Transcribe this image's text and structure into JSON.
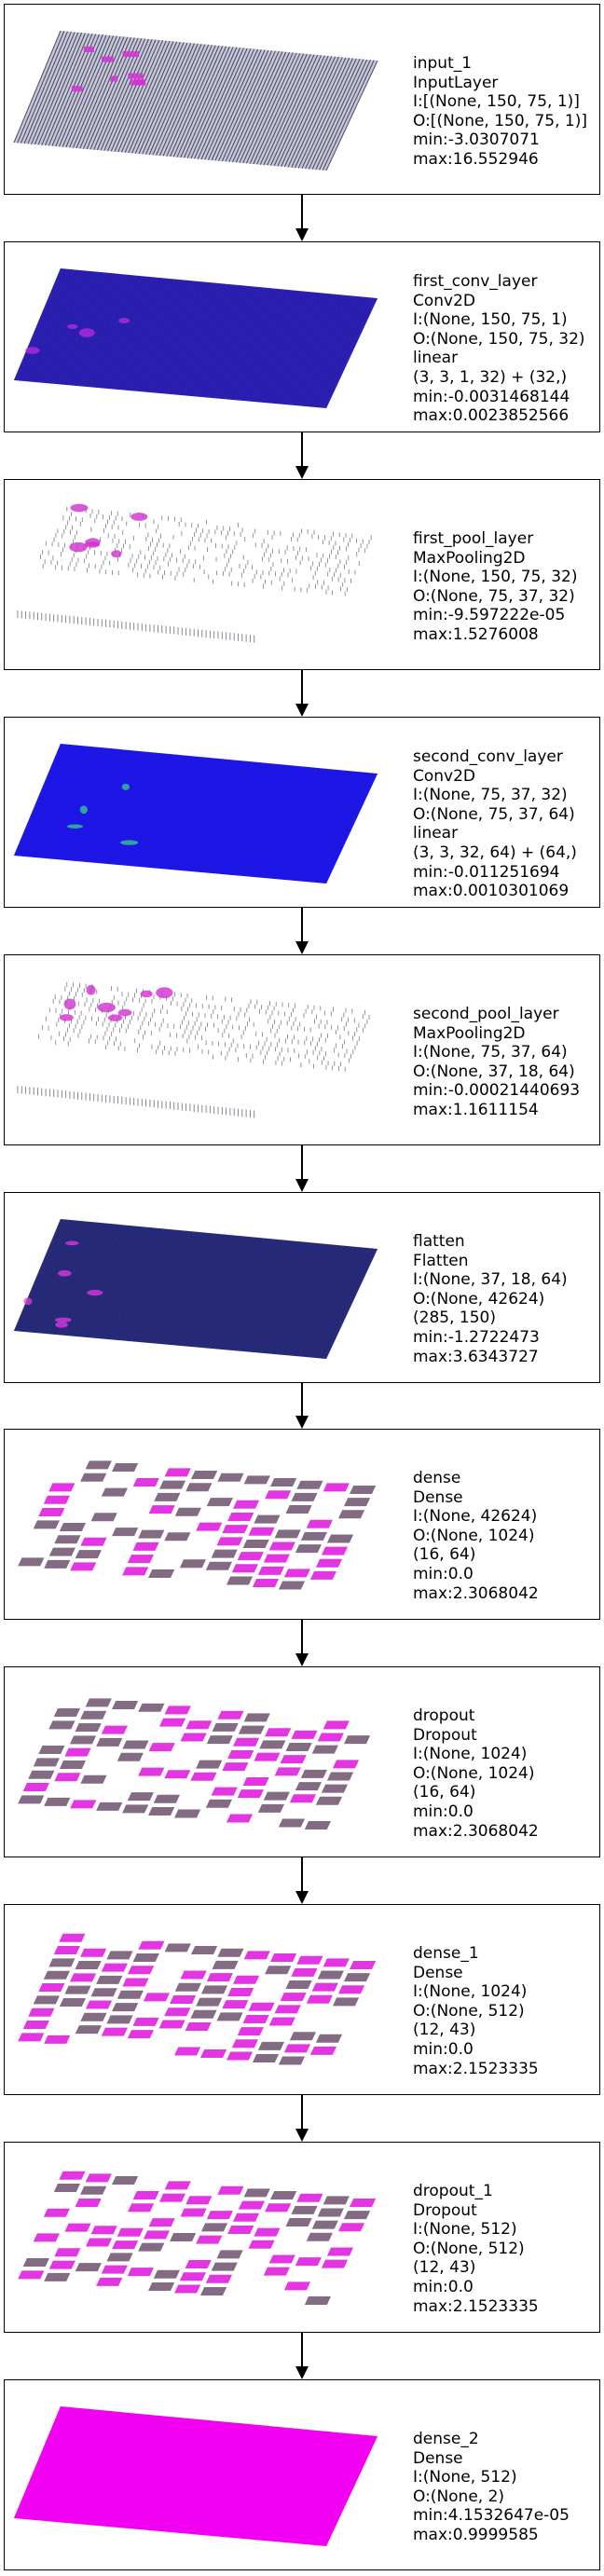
{
  "layers": [
    {
      "lines": [
        "input_1",
        "InputLayer",
        "I:[(None, 150, 75, 1)]",
        "O:[(None, 150, 75, 1)]",
        "min:-3.0307071",
        "max:16.552946"
      ],
      "style": {
        "pattern": "stripes",
        "base": "#c7c7d6",
        "line": "#2e2e52",
        "accent": "#d62fd6",
        "accent_level": 0.15
      }
    },
    {
      "lines": [
        "first_conv_layer",
        "Conv2D",
        "I:(None, 150, 75, 1)",
        "O:(None, 150, 75, 32)",
        "linear",
        "(3, 3, 1, 32) + (32,)",
        "min:-0.0031468144",
        "max:0.0023852566"
      ],
      "style": {
        "pattern": "solid",
        "base": "#2a1fb0",
        "line": "#1a1590",
        "accent": "#b82ee0",
        "accent_level": 0.1
      }
    },
    {
      "lines": [
        "first_pool_layer",
        "MaxPooling2D",
        "I:(None, 150, 75, 32)",
        "O:(None, 75, 37, 32)",
        "min:-9.597222e-05",
        "max:1.5276008"
      ],
      "style": {
        "pattern": "sparse",
        "base": "#ffffff",
        "line": "#7a7a8a",
        "accent": "#d030d0",
        "accent_level": 0.2
      }
    },
    {
      "lines": [
        "second_conv_layer",
        "Conv2D",
        "I:(None, 75, 37, 32)",
        "O:(None, 75, 37, 64)",
        "linear",
        "(3, 3, 32, 64) + (64,)",
        "min:-0.011251694",
        "max:0.0010301069"
      ],
      "style": {
        "pattern": "solid",
        "base": "#1e16e6",
        "line": "#1410c0",
        "accent": "#35d08a",
        "accent_level": 0.1
      }
    },
    {
      "lines": [
        "second_pool_layer",
        "MaxPooling2D",
        "I:(None, 75, 37, 64)",
        "O:(None, 37, 18, 64)",
        "min:-0.00021440693",
        "max:1.1611154"
      ],
      "style": {
        "pattern": "sparse",
        "base": "#ffffff",
        "line": "#7a7a8a",
        "accent": "#d030d0",
        "accent_level": 0.25
      }
    },
    {
      "lines": [
        "flatten",
        "Flatten",
        "I:(None, 37, 18, 64)",
        "O:(None, 42624)",
        "(285, 150)",
        "min:-1.2722473",
        "max:3.6343727"
      ],
      "style": {
        "pattern": "solid",
        "base": "#262a78",
        "line": "#1c1f5c",
        "accent": "#e03ae6",
        "accent_level": 0.15
      }
    },
    {
      "lines": [
        "dense",
        "Dense",
        "I:(None, 42624)",
        "O:(None, 1024)",
        "(16, 64)",
        "min:0.0",
        "max:2.3068042"
      ],
      "style": {
        "pattern": "blocks",
        "base": "#ffffff",
        "line": "#5a3a5a",
        "accent": "#e020e0",
        "accent_level": 0.45
      }
    },
    {
      "lines": [
        "dropout",
        "Dropout",
        "I:(None, 1024)",
        "O:(None, 1024)",
        "(16, 64)",
        "min:0.0",
        "max:2.3068042"
      ],
      "style": {
        "pattern": "blocks",
        "base": "#ffffff",
        "line": "#5a3a5a",
        "accent": "#e020e0",
        "accent_level": 0.45
      }
    },
    {
      "lines": [
        "dense_1",
        "Dense",
        "I:(None, 1024)",
        "O:(None, 512)",
        "(12, 43)",
        "min:0.0",
        "max:2.1523335"
      ],
      "style": {
        "pattern": "blocks",
        "base": "#ffffff",
        "line": "#5a3a5a",
        "accent": "#e020e0",
        "accent_level": 0.6
      }
    },
    {
      "lines": [
        "dropout_1",
        "Dropout",
        "I:(None, 512)",
        "O:(None, 512)",
        "(12, 43)",
        "min:0.0",
        "max:2.1523335"
      ],
      "style": {
        "pattern": "blocks",
        "base": "#ffffff",
        "line": "#5a3a5a",
        "accent": "#e020e0",
        "accent_level": 0.6
      }
    },
    {
      "lines": [
        "dense_2",
        "Dense",
        "I:(None, 512)",
        "O:(None, 2)",
        "min:4.1532647e-05",
        "max:0.9999585"
      ],
      "style": {
        "pattern": "solid",
        "base": "#f200f2",
        "line": "#e000e0",
        "accent": "#ff40ff",
        "accent_level": 0.0
      }
    }
  ]
}
